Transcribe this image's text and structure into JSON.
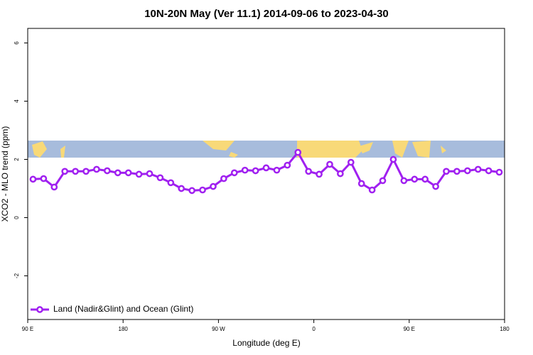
{
  "chart_data": {
    "type": "line",
    "title": "10N-20N May (Ver 11.1)   2014-09-06 to 2023-04-30",
    "x_label": "Longitude (deg E)",
    "y_label": "XCO2 - MLO trend (ppm)",
    "xlim": [
      90,
      540
    ],
    "xticks": [
      {
        "value": 90,
        "label": "90 E"
      },
      180,
      {
        "value": 270,
        "label": "90 W"
      },
      {
        "value": 360,
        "label": "0"
      },
      {
        "value": 450,
        "label": "90 E"
      },
      {
        "value": 540,
        "label": "180"
      }
    ],
    "ylim": [
      -3.5,
      6.5
    ],
    "yticks": [
      -2,
      0,
      2,
      4,
      6
    ],
    "legend_position": "bottom-left",
    "series": [
      {
        "name": "Land (Nadir&Glint) and Ocean (Glint)",
        "color": "#a020f0",
        "x": [
          95,
          105,
          115,
          125,
          135,
          145,
          155,
          165,
          175,
          185,
          195,
          205,
          215,
          225,
          235,
          245,
          255,
          265,
          275,
          285,
          295,
          305,
          315,
          325,
          335,
          345,
          355,
          365,
          375,
          385,
          395,
          405,
          415,
          425,
          435,
          445,
          455,
          465,
          475,
          485,
          495,
          505,
          515,
          525,
          535
        ],
        "values": [
          1.32,
          1.34,
          1.05,
          1.59,
          1.59,
          1.59,
          1.66,
          1.61,
          1.54,
          1.54,
          1.49,
          1.51,
          1.37,
          1.2,
          1.0,
          0.93,
          0.95,
          1.07,
          1.34,
          1.54,
          1.63,
          1.61,
          1.71,
          1.63,
          1.8,
          2.24,
          1.59,
          1.49,
          1.83,
          1.51,
          1.9,
          1.17,
          0.95,
          1.27,
          2.0,
          1.27,
          1.32,
          1.32,
          1.07,
          1.59,
          1.59,
          1.61,
          1.66,
          1.61,
          1.56
        ]
      }
    ]
  }
}
